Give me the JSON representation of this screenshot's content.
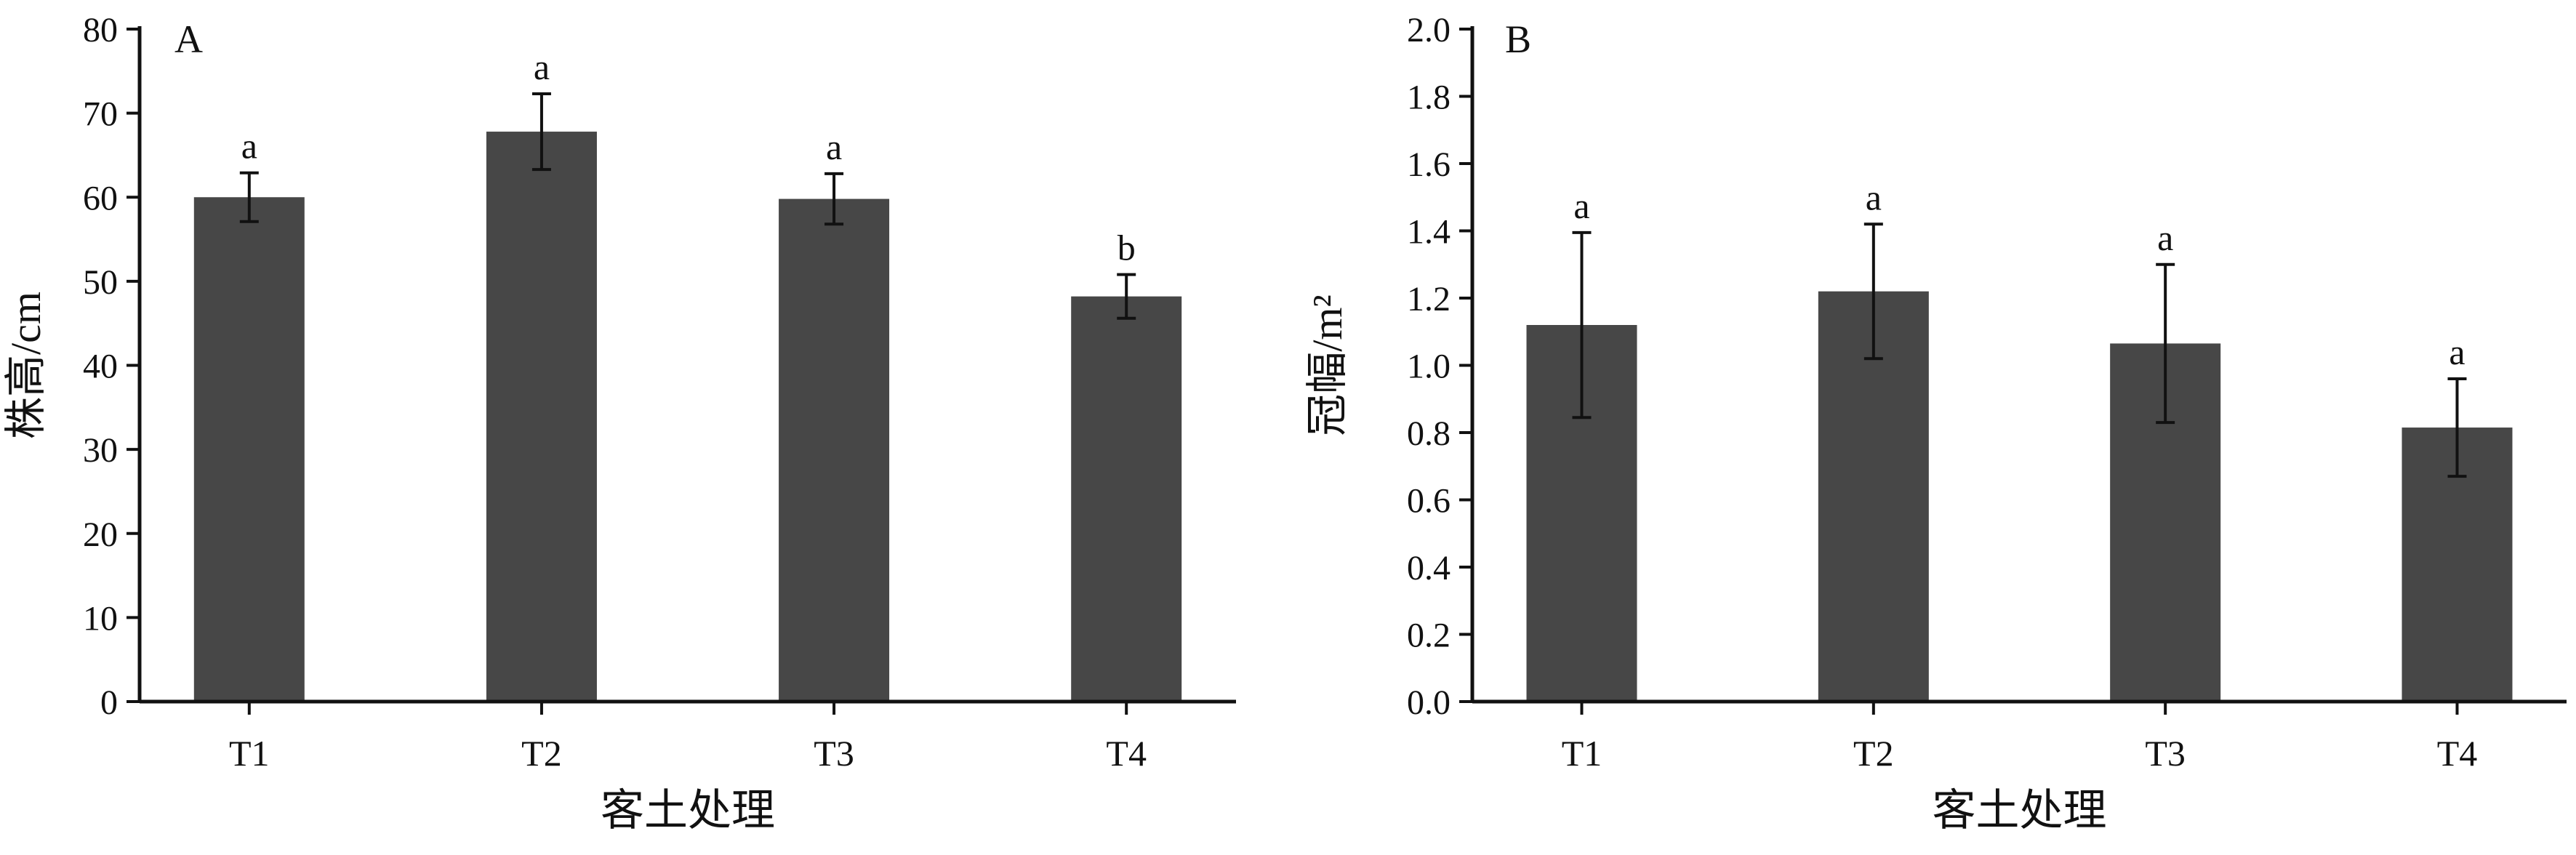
{
  "colors": {
    "bar": "#474747",
    "axis": "#111111",
    "text": "#111111",
    "background": "#ffffff"
  },
  "chart_data": [
    {
      "type": "bar",
      "panel_label": "A",
      "categories": [
        "T1",
        "T2",
        "T3",
        "T4"
      ],
      "values": [
        60.0,
        67.8,
        59.8,
        48.2
      ],
      "errors": [
        2.9,
        4.5,
        3.0,
        2.6
      ],
      "significance": [
        "a",
        "a",
        "a",
        "b"
      ],
      "xlabel": "客土处理",
      "ylabel": "株高/cm",
      "ylim": [
        0,
        80
      ],
      "yticks": [
        "0",
        "10",
        "20",
        "30",
        "40",
        "50",
        "60",
        "70",
        "80"
      ],
      "ytick_values": [
        0,
        10,
        20,
        30,
        40,
        50,
        60,
        70,
        80
      ],
      "grid": false,
      "legend": "none"
    },
    {
      "type": "bar",
      "panel_label": "B",
      "categories": [
        "T1",
        "T2",
        "T3",
        "T4"
      ],
      "values": [
        1.12,
        1.22,
        1.065,
        0.815
      ],
      "errors": [
        0.275,
        0.2,
        0.235,
        0.145
      ],
      "significance": [
        "a",
        "a",
        "a",
        "a"
      ],
      "xlabel": "客土处理",
      "ylabel": "冠幅/m²",
      "ylim": [
        0,
        2.0
      ],
      "yticks": [
        "0.0",
        "0.2",
        "0.4",
        "0.6",
        "0.8",
        "1.0",
        "1.2",
        "1.4",
        "1.6",
        "1.8",
        "2.0"
      ],
      "ytick_values": [
        0,
        0.2,
        0.4,
        0.6,
        0.8,
        1.0,
        1.2,
        1.4,
        1.6,
        1.8,
        2.0
      ],
      "grid": false,
      "legend": "none"
    }
  ]
}
